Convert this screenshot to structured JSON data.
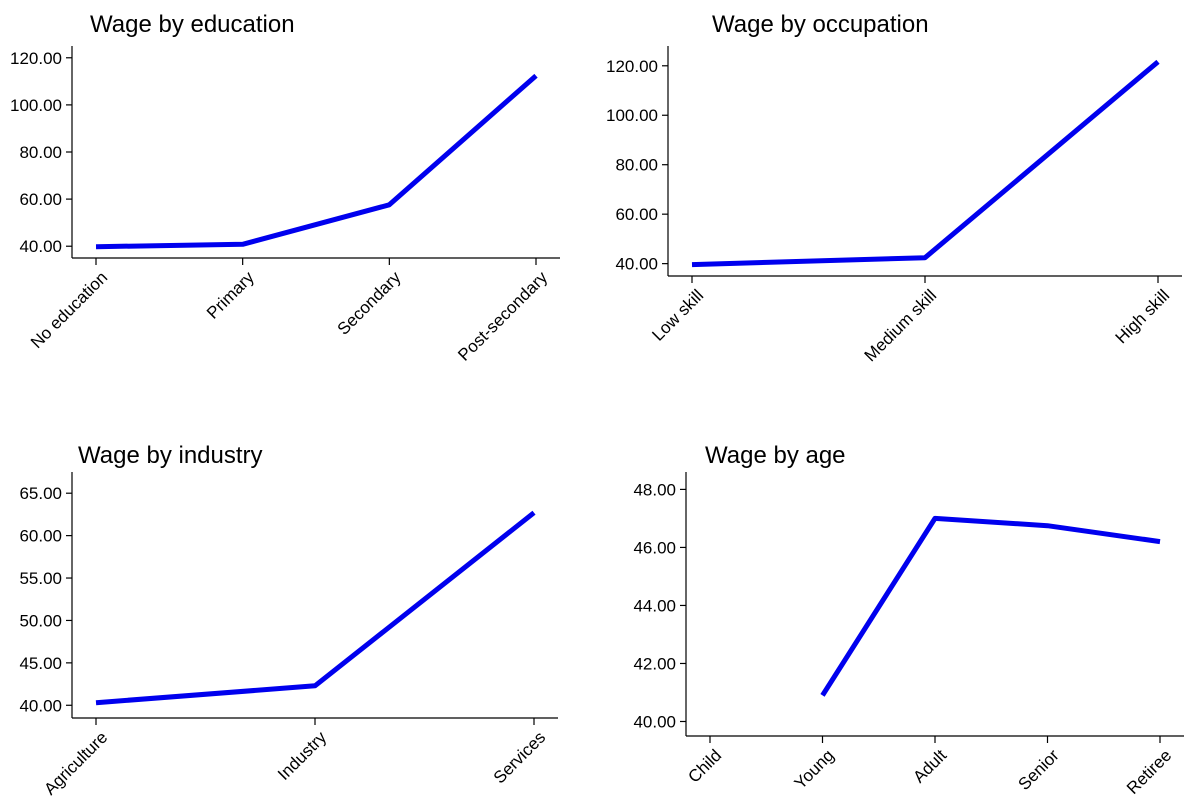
{
  "colors": {
    "line": "#0000ee",
    "axis": "#000000"
  },
  "chart_data": [
    {
      "type": "line",
      "title": "Wage by education",
      "categories": [
        "No education",
        "Primary",
        "Secondary",
        "Post-secondary"
      ],
      "values": [
        39.8,
        40.8,
        57.6,
        112.4
      ],
      "ylim": [
        35,
        125
      ],
      "yticks": [
        "40.00",
        "60.00",
        "80.00",
        "100.00",
        "120.00"
      ],
      "xlabel": "",
      "ylabel": ""
    },
    {
      "type": "line",
      "title": "Wage by occupation",
      "categories": [
        "Low skill",
        "Medium skill",
        "High skill"
      ],
      "values": [
        39.6,
        42.4,
        121.6
      ],
      "ylim": [
        35,
        128
      ],
      "yticks": [
        "40.00",
        "60.00",
        "80.00",
        "100.00",
        "120.00"
      ],
      "xlabel": "",
      "ylabel": ""
    },
    {
      "type": "line",
      "title": "Wage by industry",
      "categories": [
        "Agriculture",
        "Industry",
        "Services"
      ],
      "values": [
        40.3,
        42.3,
        62.7
      ],
      "ylim": [
        38.5,
        67.5
      ],
      "yticks": [
        "40.00",
        "45.00",
        "50.00",
        "55.00",
        "60.00",
        "65.00"
      ],
      "xlabel": "",
      "ylabel": ""
    },
    {
      "type": "line",
      "title": "Wage by age",
      "categories": [
        "Child",
        "Young",
        "Adult",
        "Senior",
        "Retiree"
      ],
      "values": [
        null,
        40.9,
        47.0,
        46.75,
        46.2
      ],
      "ylim": [
        39.5,
        48.6
      ],
      "yticks": [
        "40.00",
        "42.00",
        "44.00",
        "46.00",
        "48.00"
      ],
      "xlabel": "",
      "ylabel": ""
    }
  ]
}
